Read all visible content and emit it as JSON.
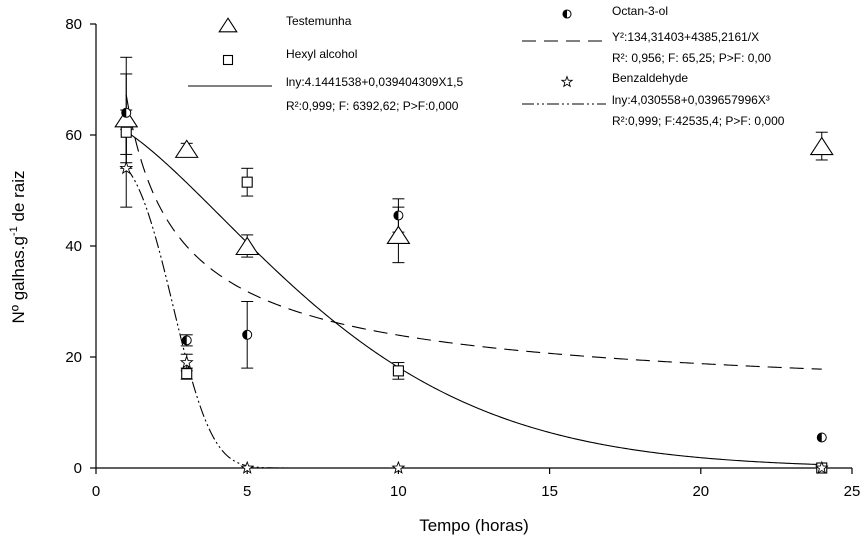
{
  "chart_data": {
    "type": "scatter",
    "xlabel": "Tempo (horas)",
    "ylabel": "Nº galhas.g-1 de raiz",
    "ylabel_parts": {
      "main": "Nº galhas.g",
      "sup": "-1",
      "rest": " de raiz"
    },
    "xlim": [
      0,
      25
    ],
    "ylim": [
      0,
      80
    ],
    "xticks": [
      0,
      5,
      10,
      15,
      20,
      25
    ],
    "yticks": [
      0,
      20,
      40,
      60,
      80
    ],
    "grid": false,
    "legend_position": "top",
    "series": [
      {
        "name": "Testemunha",
        "marker": "triangle",
        "x": [
          1,
          3,
          5,
          10,
          24
        ],
        "y": [
          63,
          57.5,
          40,
          42,
          58
        ],
        "err": [
          8,
          1,
          2,
          5,
          2.5
        ],
        "fit": null,
        "fit_stats": ""
      },
      {
        "name": "Hexyl alcohol",
        "marker": "square",
        "x": [
          1,
          3,
          5,
          10,
          24
        ],
        "y": [
          60.5,
          17,
          51.5,
          17.5,
          0
        ],
        "err": [
          4,
          1,
          2.5,
          1.5,
          0.3
        ],
        "fit": {
          "style": "solid",
          "equation": "lny:4.1441538+0,039404309X1,5"
        },
        "fit_stats": "R²:0,999; F: 6392,62;  P>F:0,000"
      },
      {
        "name": "Octan-3-ol",
        "marker": "half-circle",
        "x": [
          1,
          3,
          5,
          10,
          24
        ],
        "y": [
          64,
          23,
          24,
          45.5,
          5.5
        ],
        "err": [
          10,
          1,
          6,
          3,
          0.5
        ],
        "fit": {
          "style": "dashed",
          "equation": "Y²:134,31403+4385,2161/X"
        },
        "fit_stats": "R²: 0,956; F: 65,25; P>F: 0,00"
      },
      {
        "name": "Benzaldehyde",
        "marker": "star",
        "x": [
          1,
          3,
          5,
          10,
          24
        ],
        "y": [
          54,
          19,
          0,
          0,
          0
        ],
        "err": [
          7,
          1.5,
          0,
          0,
          0
        ],
        "fit": {
          "style": "dash-dot",
          "equation": "lny:4,030558+0,039657996X³"
        },
        "fit_stats": "R²:0,999; F:42535,4; P>F: 0,000"
      }
    ]
  }
}
